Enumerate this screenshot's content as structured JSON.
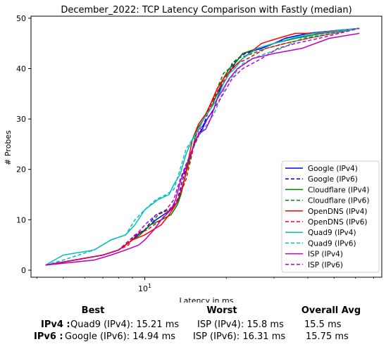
{
  "chart_data": {
    "type": "line",
    "title": "December_2022: TCP Latency Comparison with Fastly (median)",
    "xlabel": "Latency in ms",
    "ylabel": "# Probes",
    "x_scale": "log",
    "xlim": [
      3.8,
      75
    ],
    "ylim": [
      -1.4,
      50.4
    ],
    "x_ticks": [
      {
        "value": 10,
        "label": "10^1"
      }
    ],
    "y_ticks": [
      0,
      10,
      20,
      30,
      40,
      50
    ],
    "grid": false,
    "legend_position": "lower right",
    "series": [
      {
        "name": "Google (IPv4)",
        "color": "#0000ff",
        "dash": "solid",
        "x": [
          4.3,
          5.5,
          7.0,
          8.0,
          9.0,
          9.4,
          10.0,
          11.0,
          12.5,
          13.0,
          13.3,
          14.0,
          14.5,
          15.0,
          15.5,
          16.3,
          17.0,
          18.0,
          19.0,
          20.0,
          21.0,
          21.5,
          23.0,
          27.0,
          30.0,
          33.0,
          40.0,
          62.0
        ],
        "y": [
          1,
          2,
          3,
          4,
          6,
          7,
          8,
          10,
          12,
          13,
          14,
          18,
          22,
          24,
          26,
          28,
          30,
          32,
          36,
          38,
          40,
          41,
          43,
          44,
          45,
          46,
          47,
          48
        ]
      },
      {
        "name": "Google (IPv6)",
        "color": "#0000ff",
        "dash": "dashed",
        "x": [
          4.3,
          5.5,
          7.0,
          8.0,
          8.8,
          9.2,
          10.0,
          11.0,
          12.3,
          12.8,
          13.2,
          13.8,
          14.5,
          15.3,
          16.2,
          16.8,
          17.5,
          18.5,
          19.5,
          20.5,
          21.0,
          22.0,
          23.5,
          27.0,
          30.0,
          33.0,
          40.0,
          62.0
        ],
        "y": [
          1,
          2,
          3,
          4,
          6,
          7,
          8,
          11,
          12,
          13,
          14,
          18,
          22,
          25,
          28,
          30,
          33,
          35,
          37,
          39,
          41,
          42,
          43,
          44,
          45,
          46,
          47,
          48
        ]
      },
      {
        "name": "Cloudflare (IPv4)",
        "color": "#008000",
        "dash": "solid",
        "x": [
          4.3,
          5.5,
          7.0,
          8.0,
          9.0,
          9.6,
          10.5,
          11.5,
          12.5,
          13.2,
          13.6,
          14.3,
          15.0,
          15.6,
          16.5,
          17.5,
          18.5,
          19.5,
          20.5,
          21.5,
          23.0,
          26.0,
          30.0,
          36.0,
          45.0,
          62.0
        ],
        "y": [
          1,
          2,
          3,
          4,
          6,
          7,
          9,
          10,
          11,
          13,
          15,
          20,
          24,
          28,
          30,
          32,
          35,
          38,
          40,
          41,
          43,
          44,
          45,
          46,
          47,
          48
        ]
      },
      {
        "name": "Cloudflare (IPv6)",
        "color": "#008000",
        "dash": "dashed",
        "x": [
          4.3,
          5.5,
          7.0,
          8.0,
          9.0,
          9.6,
          10.5,
          11.2,
          12.3,
          13.0,
          13.5,
          14.0,
          14.7,
          15.5,
          16.5,
          17.5,
          18.5,
          19.5,
          20.5,
          22.0,
          25.0,
          28.0,
          33.0,
          40.0,
          62.0
        ],
        "y": [
          1,
          2,
          3,
          4,
          6,
          7,
          9,
          11,
          12,
          13,
          15,
          18,
          22,
          27,
          30,
          33,
          36,
          39,
          40,
          42,
          43,
          44,
          45,
          46,
          48
        ]
      },
      {
        "name": "OpenDNS (IPv4)",
        "color": "#ff0000",
        "dash": "solid",
        "x": [
          4.3,
          5.5,
          7.0,
          8.0,
          8.5,
          9.0,
          10.0,
          11.5,
          12.3,
          13.0,
          13.5,
          14.0,
          14.5,
          15.0,
          15.8,
          16.8,
          17.5,
          18.5,
          19.5,
          21.0,
          23.0,
          27.0,
          31.0,
          36.0,
          45.0,
          62.0
        ],
        "y": [
          1,
          2,
          3,
          4,
          5,
          6,
          7,
          9,
          11,
          13,
          15,
          18,
          22,
          26,
          29,
          31,
          33,
          36,
          38,
          40,
          42,
          45,
          46,
          47,
          47,
          48
        ]
      },
      {
        "name": "OpenDNS (IPv6)",
        "color": "#ff0000",
        "dash": "dashed",
        "x": [
          4.3,
          5.5,
          7.0,
          8.0,
          8.7,
          9.2,
          10.2,
          11.5,
          12.3,
          13.0,
          13.5,
          14.2,
          14.8,
          15.5,
          16.5,
          17.3,
          18.3,
          19.3,
          20.3,
          22.0,
          24.0,
          28.0,
          33.0,
          40.0,
          62.0
        ],
        "y": [
          1,
          2,
          3,
          4,
          5,
          7,
          8,
          10,
          12,
          13,
          15,
          18,
          22,
          27,
          30,
          32,
          35,
          37,
          39,
          41,
          42,
          44,
          45,
          46,
          48
        ]
      },
      {
        "name": "Quad9 (IPv4)",
        "color": "#00bfbf",
        "dash": "solid",
        "x": [
          4.3,
          5.0,
          6.5,
          7.5,
          8.5,
          9.2,
          10.0,
          11.2,
          12.3,
          12.8,
          13.5,
          14.2,
          15.0,
          15.8,
          16.5,
          17.5,
          18.5,
          19.5,
          20.5,
          21.5,
          23.0,
          26.0,
          30.0,
          35.0,
          42.0,
          62.0
        ],
        "y": [
          1,
          3,
          4,
          6,
          7,
          9,
          12,
          14,
          15,
          17,
          19,
          23,
          26,
          28,
          30,
          32,
          34,
          37,
          39,
          40,
          42,
          44,
          45,
          46,
          47,
          48
        ]
      },
      {
        "name": "Quad9 (IPv6)",
        "color": "#00bfbf",
        "dash": "dashed",
        "x": [
          4.3,
          5.0,
          6.5,
          7.5,
          8.5,
          9.2,
          10.0,
          11.0,
          12.0,
          12.8,
          13.5,
          14.2,
          15.0,
          16.0,
          17.0,
          18.0,
          19.0,
          20.0,
          21.5,
          23.0,
          25.0,
          28.0,
          32.0,
          38.0,
          62.0
        ],
        "y": [
          1,
          2,
          4,
          6,
          7,
          10,
          12,
          14,
          15,
          16,
          20,
          24,
          26,
          27,
          29,
          31,
          34,
          37,
          39,
          41,
          42,
          43,
          44,
          46,
          48
        ]
      },
      {
        "name": "ISP (IPv4)",
        "color": "#bf00bf",
        "dash": "solid",
        "x": [
          4.3,
          6.5,
          7.5,
          8.5,
          9.5,
          10.0,
          10.8,
          11.5,
          12.5,
          13.0,
          13.6,
          14.3,
          15.0,
          15.8,
          16.8,
          17.5,
          18.5,
          19.5,
          20.5,
          22.0,
          25.0,
          30.0,
          38.0,
          48.0,
          62.0
        ],
        "y": [
          1,
          2,
          3,
          4,
          5,
          6,
          8,
          10,
          12,
          14,
          18,
          21,
          24,
          27,
          28,
          30,
          34,
          36,
          38,
          40,
          42,
          43,
          44,
          46,
          47
        ]
      },
      {
        "name": "ISP (IPv6)",
        "color": "#bf00bf",
        "dash": "dashed",
        "x": [
          4.3,
          5.5,
          7.0,
          8.0,
          8.8,
          9.3,
          10.0,
          11.0,
          12.0,
          12.8,
          13.5,
          14.2,
          15.0,
          16.0,
          17.0,
          18.0,
          19.0,
          20.0,
          21.0,
          23.0,
          27.0,
          31.0,
          36.0,
          44.0,
          62.0
        ],
        "y": [
          1,
          2,
          3,
          4,
          6,
          7,
          9,
          11,
          12,
          14,
          18,
          21,
          24,
          28,
          30,
          32,
          34,
          36,
          38,
          40,
          42,
          44,
          45,
          46,
          48
        ]
      }
    ]
  },
  "summary": {
    "headers": {
      "best": "Best",
      "worst": "Worst",
      "avg": "Overall Avg"
    },
    "rows": [
      {
        "label": "IPv4 :",
        "best": "Quad9 (IPv4): 15.21 ms",
        "worst": "ISP (IPv4): 15.8 ms",
        "avg": "15.5 ms"
      },
      {
        "label": "IPv6 :",
        "best": "Google (IPv6): 14.94 ms",
        "worst": "ISP (IPv6): 16.31 ms",
        "avg": "15.75 ms"
      }
    ]
  }
}
